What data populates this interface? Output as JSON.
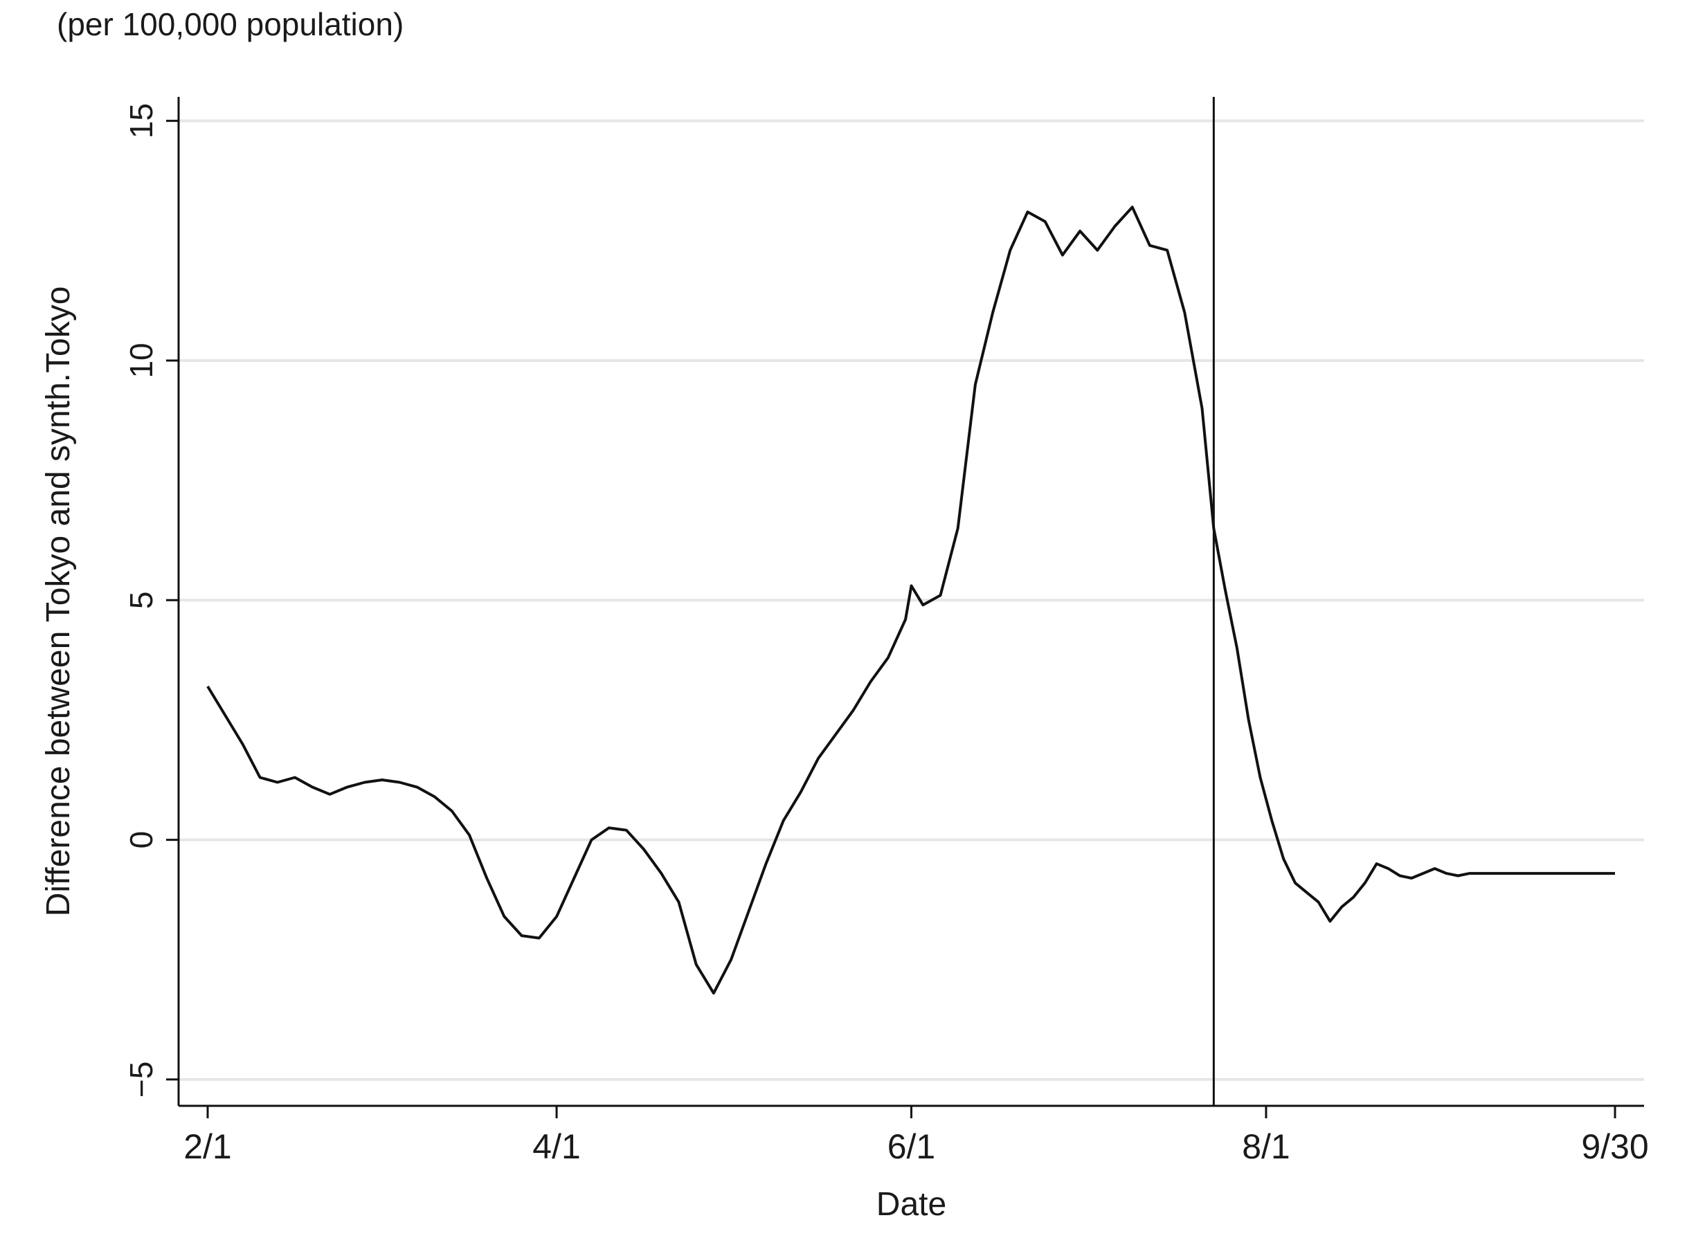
{
  "chart_data": {
    "type": "line",
    "unit_note": "(per 100,000 population)",
    "xlabel": "Date",
    "ylabel": "Difference between Tokyo and synth.Tokyo",
    "x_ticks": [
      "2/1",
      "4/1",
      "6/1",
      "8/1",
      "9/30"
    ],
    "x_tick_days": [
      0,
      60,
      121,
      182,
      242
    ],
    "y_ticks": [
      "15",
      "10",
      "5",
      "0",
      "−5"
    ],
    "y_tick_values": [
      15,
      10,
      5,
      0,
      -5
    ],
    "xlim_days": [
      -5,
      247
    ],
    "ylim": [
      -5.55,
      15.5
    ],
    "grid": "horizontal",
    "legend": "none",
    "line_color": "#111111",
    "grid_color": "#e6e6e6",
    "vertical_line_day": 173,
    "series": [
      {
        "x": [
          0,
          3,
          6,
          9,
          12,
          15,
          18,
          21,
          24,
          27,
          30,
          33,
          36,
          39,
          42,
          45,
          48,
          51,
          54,
          57,
          60,
          63,
          66,
          69,
          72,
          75,
          78,
          81,
          84,
          87,
          90,
          93,
          96,
          99,
          102,
          105,
          108,
          111,
          114,
          117,
          120,
          121,
          123,
          126,
          129,
          132,
          135,
          138,
          141,
          144,
          147,
          150,
          153,
          156,
          159,
          162,
          165,
          168,
          171,
          173,
          175,
          177,
          179,
          181,
          183,
          185,
          187,
          189,
          191,
          193,
          195,
          197,
          199,
          201,
          203,
          205,
          207,
          209,
          211,
          213,
          215,
          217,
          219,
          221,
          223,
          225,
          227,
          229,
          231,
          233,
          235,
          237,
          239,
          242
        ],
        "y": [
          3.2,
          2.6,
          2.0,
          1.3,
          1.2,
          1.3,
          1.1,
          0.95,
          1.1,
          1.2,
          1.25,
          1.2,
          1.1,
          0.9,
          0.6,
          0.1,
          -0.8,
          -1.6,
          -2.0,
          -2.05,
          -1.6,
          -0.8,
          0.0,
          0.25,
          0.2,
          -0.2,
          -0.7,
          -1.3,
          -2.6,
          -3.2,
          -2.5,
          -1.5,
          -0.5,
          0.4,
          1.0,
          1.7,
          2.2,
          2.7,
          3.3,
          3.8,
          4.6,
          5.3,
          4.9,
          5.1,
          6.5,
          9.5,
          11.0,
          12.3,
          13.1,
          12.9,
          12.2,
          12.7,
          12.3,
          12.8,
          13.2,
          12.4,
          12.3,
          11.0,
          9.0,
          6.5,
          5.2,
          4.0,
          2.5,
          1.3,
          0.4,
          -0.4,
          -0.9,
          -1.1,
          -1.3,
          -1.7,
          -1.4,
          -1.2,
          -0.9,
          -0.5,
          -0.6,
          -0.75,
          -0.8,
          -0.7,
          -0.6,
          -0.7,
          -0.75,
          -0.7,
          -0.7,
          -0.7,
          -0.7,
          -0.7,
          -0.7,
          -0.7,
          -0.7,
          -0.7,
          -0.7,
          -0.7,
          -0.7,
          -0.7
        ]
      }
    ]
  }
}
